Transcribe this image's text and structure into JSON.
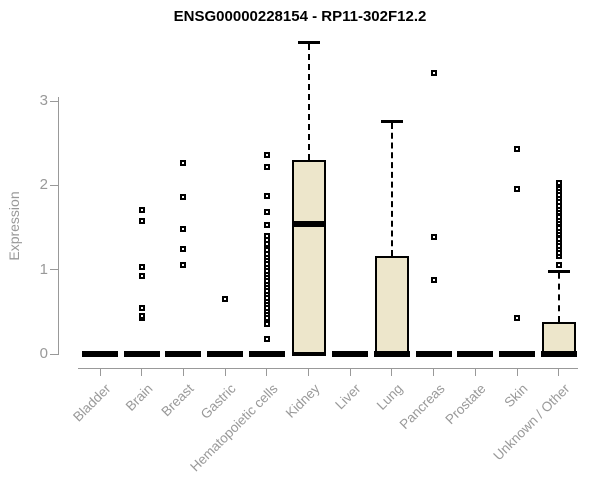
{
  "title": "ENSG00000228154 - RP11-302F12.2",
  "colors": {
    "box_fill": "#ede6cb",
    "box_border": "#000000",
    "marker": "#000000",
    "axis": "#999999",
    "tick_label": "#999999",
    "title": "#000000",
    "background": "#ffffff"
  },
  "chart_data": {
    "type": "boxplot",
    "title": "ENSG00000228154 - RP11-302F12.2",
    "xlabel": "",
    "ylabel": "Expression",
    "ylim": [
      0,
      3.75
    ],
    "yticks": [
      0,
      1,
      2,
      3
    ],
    "grid": false,
    "legend": "none",
    "categories": [
      "Bladder",
      "Brain",
      "Breast",
      "Gastric",
      "Hematopoietic cells",
      "Kidney",
      "Liver",
      "Lung",
      "Pancreas",
      "Prostate",
      "Skin",
      "Unknown / Other"
    ],
    "series": [
      {
        "category": "Bladder",
        "q1": 0,
        "median": 0,
        "q3": 0,
        "whisker_low": 0,
        "whisker_high": 0,
        "outliers": []
      },
      {
        "category": "Brain",
        "q1": 0,
        "median": 0,
        "q3": 0,
        "whisker_low": 0,
        "whisker_high": 0,
        "outliers": [
          0.43,
          0.45,
          0.54,
          0.93,
          1.03,
          1.58,
          1.71
        ]
      },
      {
        "category": "Breast",
        "q1": 0,
        "median": 0,
        "q3": 0,
        "whisker_low": 0,
        "whisker_high": 0,
        "outliers": [
          1.05,
          1.24,
          1.48,
          1.86,
          2.27
        ]
      },
      {
        "category": "Gastric",
        "q1": 0,
        "median": 0,
        "q3": 0,
        "whisker_low": 0,
        "whisker_high": 0,
        "outliers": [
          0.65
        ]
      },
      {
        "category": "Hematopoietic cells",
        "q1": 0,
        "median": 0,
        "q3": 0,
        "whisker_low": 0,
        "whisker_high": 0,
        "outliers": [
          0.18,
          0.36,
          0.4,
          0.43,
          0.47,
          0.51,
          0.55,
          0.59,
          0.63,
          0.67,
          0.71,
          0.75,
          0.79,
          0.83,
          0.87,
          0.91,
          0.95,
          0.99,
          1.03,
          1.07,
          1.11,
          1.15,
          1.19,
          1.23,
          1.28,
          1.3,
          1.35,
          1.4,
          1.53,
          1.69,
          1.87,
          2.22,
          2.36
        ]
      },
      {
        "category": "Kidney",
        "q1": 0,
        "median": 1.54,
        "q3": 2.3,
        "whisker_low": 0,
        "whisker_high": 3.7,
        "outliers": []
      },
      {
        "category": "Liver",
        "q1": 0,
        "median": 0,
        "q3": 0,
        "whisker_low": 0,
        "whisker_high": 0,
        "outliers": []
      },
      {
        "category": "Lung",
        "q1": 0,
        "median": 0,
        "q3": 1.16,
        "whisker_low": 0,
        "whisker_high": 2.76,
        "outliers": []
      },
      {
        "category": "Pancreas",
        "q1": 0,
        "median": 0,
        "q3": 0,
        "whisker_low": 0,
        "whisker_high": 0,
        "outliers": [
          0.88,
          1.39,
          3.33
        ]
      },
      {
        "category": "Prostate",
        "q1": 0,
        "median": 0,
        "q3": 0,
        "whisker_low": 0,
        "whisker_high": 0,
        "outliers": []
      },
      {
        "category": "Skin",
        "q1": 0,
        "median": 0,
        "q3": 0,
        "whisker_low": 0,
        "whisker_high": 0,
        "outliers": [
          0.43,
          1.96,
          2.43
        ]
      },
      {
        "category": "Unknown / Other",
        "q1": 0,
        "median": 0,
        "q3": 0.38,
        "whisker_low": 0,
        "whisker_high": 0.98,
        "cap_cross": true,
        "outliers": [
          1.05,
          1.16,
          1.2,
          1.24,
          1.28,
          1.33,
          1.37,
          1.42,
          1.46,
          1.5,
          1.55,
          1.59,
          1.63,
          1.68,
          1.72,
          1.76,
          1.8,
          1.85,
          1.89,
          1.93,
          1.97,
          2.0,
          2.03
        ]
      }
    ]
  }
}
